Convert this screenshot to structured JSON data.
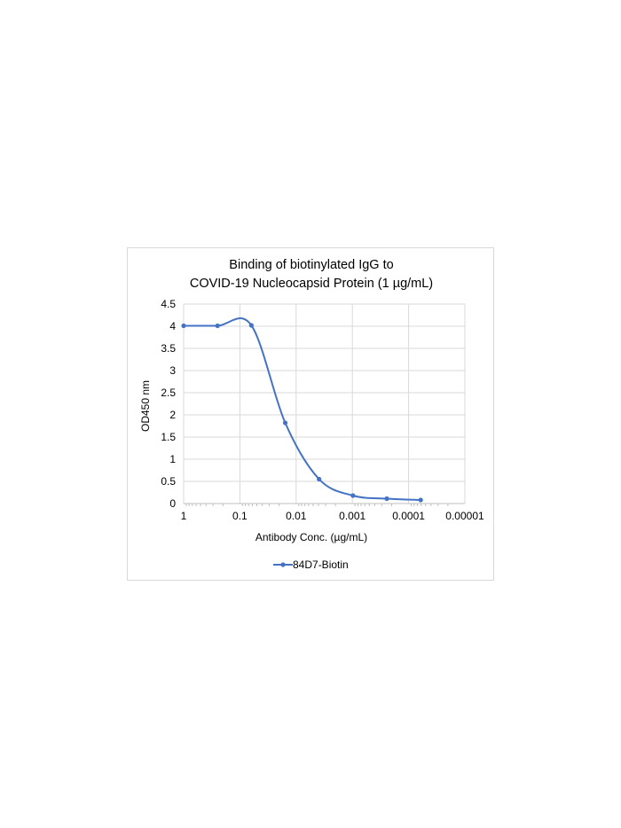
{
  "chart_data": {
    "type": "line",
    "title": [
      "Binding of biotinylated IgG to",
      "COVID-19 Nucleocapsid Protein (1 µg/mL)"
    ],
    "xlabel": "Antibody Conc. (µg/mL)",
    "ylabel": "OD450 nm",
    "x_scale": "log-reversed",
    "xlim": [
      1,
      1e-05
    ],
    "ylim": [
      0,
      4.5
    ],
    "x_ticks": [
      {
        "value": 1,
        "label": "1"
      },
      {
        "value": 0.1,
        "label": "0.1"
      },
      {
        "value": 0.01,
        "label": "0.01"
      },
      {
        "value": 0.001,
        "label": "0.001"
      },
      {
        "value": 0.0001,
        "label": "0.0001"
      },
      {
        "value": 1e-05,
        "label": "0.00001"
      }
    ],
    "y_ticks": [
      {
        "value": 0,
        "label": "0"
      },
      {
        "value": 0.5,
        "label": "0.5"
      },
      {
        "value": 1,
        "label": "1"
      },
      {
        "value": 1.5,
        "label": "1.5"
      },
      {
        "value": 2,
        "label": "2"
      },
      {
        "value": 2.5,
        "label": "2.5"
      },
      {
        "value": 3,
        "label": "3"
      },
      {
        "value": 3.5,
        "label": "3.5"
      },
      {
        "value": 4,
        "label": "4"
      },
      {
        "value": 4.5,
        "label": "4.5"
      }
    ],
    "grid": true,
    "legend_position": "bottom",
    "series": [
      {
        "name": "84D7-Biotin",
        "color": "#4472C4",
        "marker": "circle",
        "smooth": true,
        "x": [
          1,
          0.25,
          0.0625,
          0.015625,
          0.00390625,
          0.0009765625,
          0.000244140625,
          6.103515625e-05
        ],
        "y": [
          4.01,
          4.01,
          4.02,
          1.82,
          0.55,
          0.18,
          0.11,
          0.08
        ]
      }
    ]
  }
}
